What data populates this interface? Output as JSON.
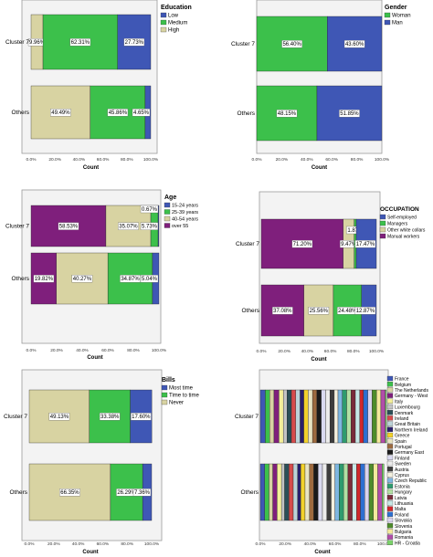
{
  "colors": {
    "low": "#3f57b5",
    "medium": "#3cc04b",
    "high": "#d8d3a2",
    "woman": "#3cc04b",
    "man": "#3f57b5",
    "age_15_24": "#3f57b5",
    "age_25_39": "#3cc04b",
    "age_40_54": "#d8d3a2",
    "age_over55": "#7f1f7c",
    "self_employed": "#3f57b5",
    "managers": "#3cc04b",
    "other_white": "#d8d3a2",
    "manual": "#7f1f7c",
    "most_time": "#3f57b5",
    "time_to_time": "#3cc04b",
    "never": "#d8d3a2",
    "frame": "#9a9a9a",
    "plot_bg": "#f3f3f3"
  },
  "chart_data": [
    {
      "type": "bar",
      "orientation": "horizontal-stacked-percent",
      "title": "Education",
      "xlabel": "Count",
      "categories": [
        "Cluster 7",
        "Others"
      ],
      "xticks": [
        "0.0%",
        "20.0%",
        "40.0%",
        "60.0%",
        "80.0%",
        "100.0%"
      ],
      "xlim": [
        0,
        100
      ],
      "legend_position": "right",
      "series": [
        {
          "name": "High",
          "color": "#d8d3a2",
          "values": [
            9.96,
            49.49
          ],
          "labels": [
            "9.96%",
            "49.49%"
          ]
        },
        {
          "name": "Medium",
          "color": "#3cc04b",
          "values": [
            62.31,
            45.86
          ],
          "labels": [
            "62.31%",
            "45.86%"
          ]
        },
        {
          "name": "Low",
          "color": "#3f57b5",
          "values": [
            27.73,
            4.65
          ],
          "labels": [
            "27.73%",
            "4.65%"
          ]
        }
      ],
      "legend_order": [
        "Low",
        "Medium",
        "High"
      ]
    },
    {
      "type": "bar",
      "orientation": "horizontal-stacked-percent",
      "title": "Gender",
      "xlabel": "Count",
      "categories": [
        "Cluster 7",
        "Others"
      ],
      "xticks": [
        "0.0%",
        "20.0%",
        "40.0%",
        "60.0%",
        "80.0%",
        "100.0%"
      ],
      "xlim": [
        0,
        100
      ],
      "legend_position": "right",
      "series": [
        {
          "name": "Woman",
          "color": "#3cc04b",
          "values": [
            56.4,
            48.15
          ],
          "labels": [
            "56.40%",
            "48.15%"
          ]
        },
        {
          "name": "Man",
          "color": "#3f57b5",
          "values": [
            43.6,
            51.85
          ],
          "labels": [
            "43.60%",
            "51.85%"
          ]
        }
      ],
      "legend_order": [
        "Woman",
        "Man"
      ]
    },
    {
      "type": "bar",
      "orientation": "horizontal-stacked-percent",
      "title": "Age",
      "xlabel": "Count",
      "categories": [
        "Cluster 7",
        "Others"
      ],
      "xticks": [
        "0.0%",
        "20.0%",
        "40.0%",
        "60.0%",
        "80.0%",
        "100.0%"
      ],
      "xlim": [
        0,
        100
      ],
      "legend_position": "right",
      "series": [
        {
          "name": "over 55",
          "color": "#7f1f7c",
          "values": [
            58.53,
            19.82
          ],
          "labels": [
            "58.53%",
            "19.82%"
          ]
        },
        {
          "name": "40-54 years",
          "color": "#d8d3a2",
          "values": [
            35.07,
            40.27
          ],
          "labels": [
            "35.07%",
            "40.27%"
          ]
        },
        {
          "name": "25-39 years",
          "color": "#3cc04b",
          "values": [
            5.73,
            34.87
          ],
          "labels": [
            "5.73%",
            "34.87%"
          ]
        },
        {
          "name": "15-24 years",
          "color": "#3f57b5",
          "values": [
            0.67,
            5.04
          ],
          "labels": [
            "0.67%",
            "5.04%"
          ]
        }
      ],
      "legend_order": [
        "15-24 years",
        "25-39 years",
        "40-54 years",
        "over 55"
      ]
    },
    {
      "type": "bar",
      "orientation": "horizontal-stacked-percent",
      "title": "OCCUPATION",
      "xlabel": "Count",
      "categories": [
        "Cluster 7",
        "Others"
      ],
      "xticks": [
        "0.0%",
        "20.0%",
        "40.0%",
        "60.0%",
        "80.0%",
        "100.0%"
      ],
      "xlim": [
        0,
        100
      ],
      "legend_position": "right",
      "series": [
        {
          "name": "Manual workers",
          "color": "#7f1f7c",
          "values": [
            71.2,
            37.08
          ],
          "labels": [
            "71.20%",
            "37.08%"
          ]
        },
        {
          "name": "Other white collars",
          "color": "#d8d3a2",
          "values": [
            9.47,
            25.56
          ],
          "labels": [
            "9.47%",
            "25.56%"
          ]
        },
        {
          "name": "Managers",
          "color": "#3cc04b",
          "values": [
            1.87,
            24.48
          ],
          "labels": [
            "1.87%",
            "24.48%"
          ]
        },
        {
          "name": "Self-employed",
          "color": "#3f57b5",
          "values": [
            17.47,
            12.87
          ],
          "labels": [
            "17.47%",
            "12.87%"
          ]
        }
      ],
      "legend_order": [
        "Self-employed",
        "Managers",
        "Other white collars",
        "Manual workers"
      ]
    },
    {
      "type": "bar",
      "orientation": "horizontal-stacked-percent",
      "title": "Bills",
      "xlabel": "Count",
      "categories": [
        "Cluster 7",
        "Others"
      ],
      "xticks": [
        "0.0%",
        "20.0%",
        "40.0%",
        "60.0%",
        "80.0%",
        "100.0%"
      ],
      "xlim": [
        0,
        100
      ],
      "legend_position": "right",
      "series": [
        {
          "name": "Never",
          "color": "#d8d3a2",
          "values": [
            49.13,
            66.35
          ],
          "labels": [
            "49.13%",
            "66.35%"
          ]
        },
        {
          "name": "Time to time",
          "color": "#3cc04b",
          "values": [
            33.38,
            26.29
          ],
          "labels": [
            "33.38%",
            "26.29%"
          ]
        },
        {
          "name": "Most time",
          "color": "#3f57b5",
          "values": [
            17.6,
            7.36
          ],
          "labels": [
            "17.60%",
            "7.36%"
          ]
        }
      ],
      "legend_order": [
        "Most time",
        "Time to time",
        "Never"
      ]
    },
    {
      "type": "bar",
      "orientation": "horizontal-stacked-percent",
      "title": "",
      "xlabel": "Count",
      "categories": [
        "Cluster 7",
        "Others"
      ],
      "xticks": [
        "0.0%",
        "20.0%",
        "40.0%",
        "60.0%",
        "80.0%",
        "100.0%"
      ],
      "xlim": [
        0,
        100
      ],
      "legend_position": "right",
      "series": [
        {
          "name": "France",
          "color": "#3f57b5",
          "values": [
            4.0,
            3.5
          ]
        },
        {
          "name": "Belgium",
          "color": "#3cc04b",
          "values": [
            3.5,
            3.5
          ]
        },
        {
          "name": "The Netherlands",
          "color": "#d8d3a2",
          "values": [
            3.5,
            3.0
          ]
        },
        {
          "name": "Germany - West",
          "color": "#7f1f7c",
          "values": [
            4.0,
            3.5
          ]
        },
        {
          "name": "Italy",
          "color": "#f4ef9a",
          "values": [
            3.5,
            3.5
          ]
        },
        {
          "name": "Luxembourg",
          "color": "#c4c4c4",
          "values": [
            3.0,
            2.5
          ]
        },
        {
          "name": "Denmark",
          "color": "#2b4f57",
          "values": [
            3.5,
            3.5
          ]
        },
        {
          "name": "Ireland",
          "color": "#d64b4b",
          "values": [
            3.5,
            3.5
          ]
        },
        {
          "name": "Great Britain",
          "color": "#bcd3d8",
          "values": [
            3.5,
            3.5
          ]
        },
        {
          "name": "Northern Ireland",
          "color": "#2a1f6b",
          "values": [
            3.0,
            2.5
          ]
        },
        {
          "name": "Greece",
          "color": "#f2d12a",
          "values": [
            3.5,
            3.5
          ]
        },
        {
          "name": "Spain",
          "color": "#e9e4c2",
          "values": [
            3.5,
            3.5
          ]
        },
        {
          "name": "Portugal",
          "color": "#9d6a3f",
          "values": [
            3.5,
            3.5
          ]
        },
        {
          "name": "Germany East",
          "color": "#1a1a1a",
          "values": [
            3.5,
            3.5
          ]
        },
        {
          "name": "Finland",
          "color": "#d9d9f0",
          "values": [
            3.5,
            3.5
          ]
        },
        {
          "name": "Sweden",
          "color": "#ececec",
          "values": [
            3.5,
            3.5
          ]
        },
        {
          "name": "Austria",
          "color": "#3d3d3d",
          "values": [
            3.5,
            3.5
          ]
        },
        {
          "name": "Cyprus",
          "color": "#f4f0de",
          "values": [
            3.0,
            3.0
          ]
        },
        {
          "name": "Czech Republic",
          "color": "#7eb6e0",
          "values": [
            3.5,
            3.5
          ]
        },
        {
          "name": "Estonia",
          "color": "#2e9b6e",
          "values": [
            3.5,
            3.5
          ]
        },
        {
          "name": "Hungary",
          "color": "#b2e0a4",
          "values": [
            3.5,
            3.5
          ]
        },
        {
          "name": "Latvia",
          "color": "#7a2c3a",
          "values": [
            3.5,
            3.5
          ]
        },
        {
          "name": "Lithuania",
          "color": "#c7e8e6",
          "values": [
            3.5,
            3.5
          ]
        },
        {
          "name": "Malta",
          "color": "#d1272b",
          "values": [
            3.0,
            3.0
          ]
        },
        {
          "name": "Poland",
          "color": "#2d6fd1",
          "values": [
            3.5,
            3.5
          ]
        },
        {
          "name": "Slovakia",
          "color": "#dad3ee",
          "values": [
            3.5,
            3.5
          ]
        },
        {
          "name": "Slovenia",
          "color": "#4e8c2b",
          "values": [
            3.5,
            3.5
          ]
        },
        {
          "name": "Bulgaria",
          "color": "#f3ea9c",
          "values": [
            3.5,
            3.5
          ]
        },
        {
          "name": "Romania",
          "color": "#b14da9",
          "values": [
            3.5,
            3.5
          ]
        },
        {
          "name": "HR - Croatia",
          "color": "#7bd26a",
          "values": [
            1.0,
            1.5
          ]
        }
      ],
      "legend_order": [
        "France",
        "Belgium",
        "The Netherlands",
        "Germany - West",
        "Italy",
        "Luxembourg",
        "Denmark",
        "Ireland",
        "Great Britain",
        "Northern Ireland",
        "Greece",
        "Spain",
        "Portugal",
        "Germany East",
        "Finland",
        "Sweden",
        "Austria",
        "Cyprus",
        "Czech Republic",
        "Estonia",
        "Hungary",
        "Latvia",
        "Lithuania",
        "Malta",
        "Poland",
        "Slovakia",
        "Slovenia",
        "Bulgaria",
        "Romania",
        "HR - Croatia"
      ]
    }
  ]
}
